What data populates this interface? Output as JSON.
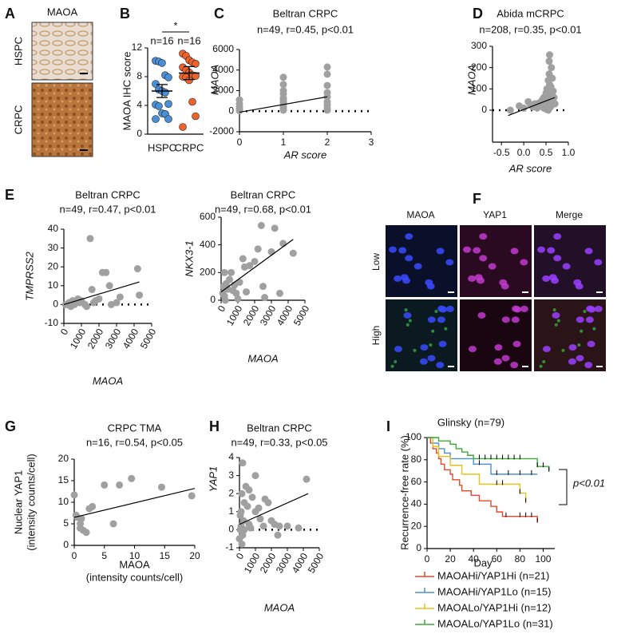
{
  "panel_labels": [
    "A",
    "B",
    "C",
    "D",
    "E",
    "F",
    "G",
    "H",
    "I"
  ],
  "images": {
    "A": {
      "title": "MAOA",
      "rows": [
        "HSPC",
        "CRPC"
      ]
    },
    "F": {
      "columns": [
        "MAOA",
        "YAP1",
        "Merge"
      ],
      "rows": [
        "Low",
        "High"
      ]
    }
  },
  "chart_data": [
    {
      "type": "strip",
      "categories": [
        "HSPC",
        "CRPC"
      ],
      "colors": [
        "#4a90d9",
        "#f0622a"
      ],
      "values": [
        [
          10.2,
          10.1,
          9.9,
          8.2,
          7.9,
          7.0,
          6.2,
          6.0,
          5.8,
          4.2,
          4.1,
          3.9,
          2.9,
          2.8,
          2.1,
          2.1
        ],
        [
          11.2,
          10.9,
          10.3,
          10.0,
          9.8,
          9.3,
          8.9,
          8.6,
          8.2,
          8.1,
          8.0,
          7.9,
          7.5,
          4.5,
          2.5,
          1.0
        ]
      ],
      "mean": [
        6.0,
        8.5
      ],
      "sem": [
        0.9,
        0.9
      ],
      "n_labels": [
        "n=16",
        "n=16"
      ],
      "significance": "*",
      "ylabel": "MAOA IHC score",
      "ylim": [
        0,
        12
      ],
      "yticks": [
        0,
        4,
        8,
        12
      ]
    },
    {
      "type": "scatter",
      "title": "Beltran CRPC",
      "subtitle": "n=49, r=0.45, p<0.01",
      "color": "#a0a0a0",
      "x": [
        0,
        0,
        0,
        0,
        0,
        0,
        1,
        1,
        1,
        1,
        1,
        1,
        1,
        1,
        1,
        1,
        1,
        2,
        2,
        2,
        2,
        2,
        2,
        2,
        2,
        2
      ],
      "values": [
        1100,
        700,
        400,
        200,
        100,
        50,
        3300,
        2600,
        2000,
        1700,
        1300,
        1100,
        900,
        700,
        500,
        300,
        100,
        4300,
        3600,
        2500,
        1800,
        1400,
        900,
        600,
        300,
        100
      ],
      "trendline": {
        "x": [
          0,
          2
        ],
        "y": [
          -100,
          1400
        ]
      },
      "reference_line": 0,
      "xlabel": "AR score",
      "ylabel": "MAOA",
      "xlim": [
        0,
        3
      ],
      "ylim": [
        -2000,
        6000
      ],
      "xticks": [
        0,
        1,
        2,
        3
      ],
      "yticks": [
        -2000,
        0,
        2000,
        4000,
        6000
      ]
    },
    {
      "type": "scatter",
      "title": "Abida mCRPC",
      "subtitle": "n=208, r=0.35, p<0.01",
      "color": "#a0a0a0",
      "x": [
        -0.3,
        -0.1,
        0.0,
        0.1,
        0.15,
        0.2,
        0.25,
        0.3,
        0.35,
        0.4,
        0.42,
        0.45,
        0.48,
        0.5,
        0.5,
        0.52,
        0.53,
        0.55,
        0.55,
        0.56,
        0.57,
        0.58,
        0.58,
        0.6,
        0.6,
        0.61,
        0.62,
        0.63,
        0.64,
        0.65,
        0.66,
        0.68,
        0.7,
        0.45,
        0.5,
        0.55,
        0.6,
        0.52,
        0.58,
        0.62,
        0.57
      ],
      "values": [
        0,
        20,
        10,
        40,
        25,
        15,
        30,
        10,
        35,
        20,
        50,
        60,
        40,
        80,
        30,
        100,
        60,
        90,
        140,
        50,
        170,
        260,
        120,
        80,
        30,
        110,
        200,
        70,
        150,
        40,
        90,
        60,
        30,
        10,
        5,
        0,
        15,
        70,
        20,
        45,
        230
      ],
      "trendline": {
        "x": [
          -0.35,
          0.7
        ],
        "y": [
          -25,
          60
        ]
      },
      "reference_line": 0,
      "xlabel": "AR score",
      "ylabel": "MAOA",
      "xlim": [
        -0.7,
        1.0
      ],
      "ylim": [
        -150,
        300
      ],
      "xticks": [
        -0.5,
        {
          "value": 0,
          "label": "0.0"
        },
        0.5,
        {
          "value": 1,
          "label": "1.0"
        }
      ],
      "yticks": [
        0,
        100,
        200,
        300
      ]
    },
    {
      "type": "scatter",
      "title": "Beltran CRPC",
      "subtitle": "n=49, r=0.47, p<0.01",
      "color": "#a0a0a0",
      "x": [
        100,
        200,
        300,
        400,
        500,
        600,
        700,
        800,
        900,
        1000,
        1200,
        1300,
        1500,
        1600,
        1700,
        1800,
        2000,
        2200,
        2400,
        2600,
        2700,
        3000,
        3200,
        4200,
        4300
      ],
      "values": [
        0,
        0,
        1,
        -1,
        2,
        0,
        1,
        3,
        1,
        2,
        0,
        -1,
        35,
        8,
        1,
        2,
        3,
        17,
        17,
        10,
        0,
        1,
        4,
        19,
        5
      ],
      "trendline": {
        "x": [
          0,
          4300
        ],
        "y": [
          0,
          12
        ]
      },
      "reference_line": 0,
      "xlabel": "MAOA",
      "ylabel": "TMPRSS2",
      "xlim": [
        0,
        5000
      ],
      "ylim": [
        -10,
        40
      ],
      "xticks": [
        0,
        1000,
        2000,
        3000,
        4000,
        5000
      ],
      "yticks": [
        -10,
        0,
        10,
        20,
        30,
        40
      ]
    },
    {
      "type": "scatter",
      "title": "Beltran CRPC",
      "subtitle": "n=49, r=0.68, p<0.01",
      "color": "#a0a0a0",
      "x": [
        100,
        150,
        200,
        200,
        250,
        300,
        400,
        500,
        600,
        700,
        800,
        900,
        1000,
        1100,
        1300,
        1400,
        1500,
        1700,
        2000,
        2200,
        2400,
        2500,
        2600,
        3000,
        3200,
        3500,
        3700,
        4300
      ],
      "values": [
        50,
        100,
        30,
        200,
        0,
        120,
        80,
        150,
        200,
        70,
        110,
        50,
        10,
        130,
        300,
        240,
        60,
        250,
        280,
        370,
        540,
        100,
        20,
        350,
        520,
        50,
        410,
        340
      ],
      "trendline": {
        "x": [
          0,
          4300
        ],
        "y": [
          60,
          440
        ]
      },
      "xlabel": "MAOA",
      "ylabel": "NKX3-1",
      "xlim": [
        0,
        5000
      ],
      "ylim": [
        0,
        600
      ],
      "xticks": [
        0,
        1000,
        2000,
        3000,
        4000,
        5000
      ],
      "yticks": [
        0,
        200,
        400,
        600
      ]
    },
    {
      "type": "scatter",
      "title": "CRPC TMA",
      "subtitle": "n=16, r=0.54, p<0.05",
      "color": "#a0a0a0",
      "x": [
        0,
        0.3,
        0.5,
        1,
        1,
        1.2,
        1.5,
        2,
        2.5,
        3,
        5,
        6.5,
        7.5,
        9.5,
        14.5,
        19.5
      ],
      "values": [
        11.7,
        7,
        6.5,
        4,
        5,
        6.2,
        3.5,
        3,
        8.5,
        9,
        14,
        5,
        14,
        15.5,
        13.5,
        11.5
      ],
      "trendline": {
        "x": [
          0,
          20
        ],
        "y": [
          6.5,
          13.2
        ]
      },
      "xlabel": [
        "MAOA",
        "(intensity counts/cell)"
      ],
      "ylabel": [
        "Nuclear YAP1",
        "(intensity counts/cell)"
      ],
      "xlim": [
        0,
        20
      ],
      "ylim": [
        0,
        20
      ],
      "xticks": [
        0,
        5,
        10,
        15,
        20
      ],
      "yticks": [
        0,
        5,
        10,
        15,
        20
      ]
    },
    {
      "type": "scatter",
      "title": "Beltran CRPC",
      "subtitle": "n=49, r=0.33, p<0.05",
      "color": "#a0a0a0",
      "x": [
        0,
        50,
        50,
        100,
        100,
        150,
        150,
        200,
        200,
        250,
        300,
        300,
        400,
        500,
        600,
        600,
        700,
        800,
        1000,
        1000,
        1200,
        1300,
        1500,
        1600,
        1800,
        2000,
        2200,
        2400,
        2500,
        3000,
        3700,
        4200
      ],
      "values": [
        -0.5,
        0,
        0.8,
        0.2,
        1,
        2,
        -0.8,
        3.7,
        -0.3,
        0.5,
        1.5,
        0,
        2.4,
        1.3,
        2.2,
        0.3,
        0.1,
        1.8,
        3,
        1,
        1.2,
        0.6,
        0.2,
        1.7,
        1.5,
        0.5,
        0.3,
        -0.3,
        0.2,
        0.2,
        0.1,
        2.8
      ],
      "trendline": {
        "x": [
          0,
          4300
        ],
        "y": [
          0.3,
          2
        ]
      },
      "reference_line": 0,
      "xlabel": "MAOA",
      "ylabel": "YAP1",
      "xlim": [
        0,
        5000
      ],
      "ylim": [
        -1,
        4
      ],
      "xticks": [
        0,
        1000,
        2000,
        3000,
        4000,
        5000
      ],
      "yticks": [
        -1,
        0,
        1,
        2,
        3,
        4
      ]
    },
    {
      "type": "km",
      "title": "Glinsky (n=79)",
      "xlabel": "Day",
      "ylabel": "Recurrence-free rate (%)",
      "annotation": "p<0.01",
      "xlim": [
        0,
        110
      ],
      "ylim": [
        0,
        100
      ],
      "xticks": [
        0,
        20,
        40,
        60,
        80,
        100
      ],
      "yticks": [
        0,
        20,
        40,
        60,
        80,
        100
      ],
      "series": [
        {
          "name": "MAOAHi/YAP1Hi (n=21)",
          "color": "#e8472a",
          "x": [
            0,
            3,
            5,
            8,
            10,
            12,
            15,
            20,
            22,
            28,
            30,
            38,
            45,
            55,
            60,
            65,
            95
          ],
          "values": [
            100,
            95,
            90,
            86,
            81,
            76,
            71,
            67,
            62,
            57,
            52,
            48,
            43,
            38,
            33,
            29,
            24
          ],
          "censor_x": [
            68,
            80,
            85,
            90,
            95
          ]
        },
        {
          "name": "MAOAHi/YAP1Lo (n=15)",
          "color": "#4a90d9",
          "x": [
            0,
            5,
            10,
            15,
            20,
            40,
            55,
            95
          ],
          "values": [
            100,
            95,
            90,
            86,
            81,
            76,
            67,
            67
          ],
          "censor_x": [
            45,
            60,
            70,
            80,
            90
          ]
        },
        {
          "name": "MAOALo/YAP1Hi (n=12)",
          "color": "#e8c21a",
          "x": [
            0,
            5,
            10,
            20,
            30,
            45,
            80,
            85
          ],
          "values": [
            100,
            92,
            83,
            75,
            67,
            58,
            50,
            42
          ],
          "censor_x": [
            60,
            65,
            80,
            85
          ]
        },
        {
          "name": "MAOALo/YAP1Lo (n=31)",
          "color": "#3aaa35",
          "x": [
            0,
            10,
            20,
            25,
            30,
            35,
            40,
            95,
            105
          ],
          "values": [
            100,
            97,
            94,
            90,
            87,
            84,
            81,
            74,
            70
          ],
          "censor_x": [
            45,
            50,
            55,
            60,
            65,
            70,
            75,
            80,
            95,
            100,
            105
          ]
        }
      ]
    }
  ]
}
